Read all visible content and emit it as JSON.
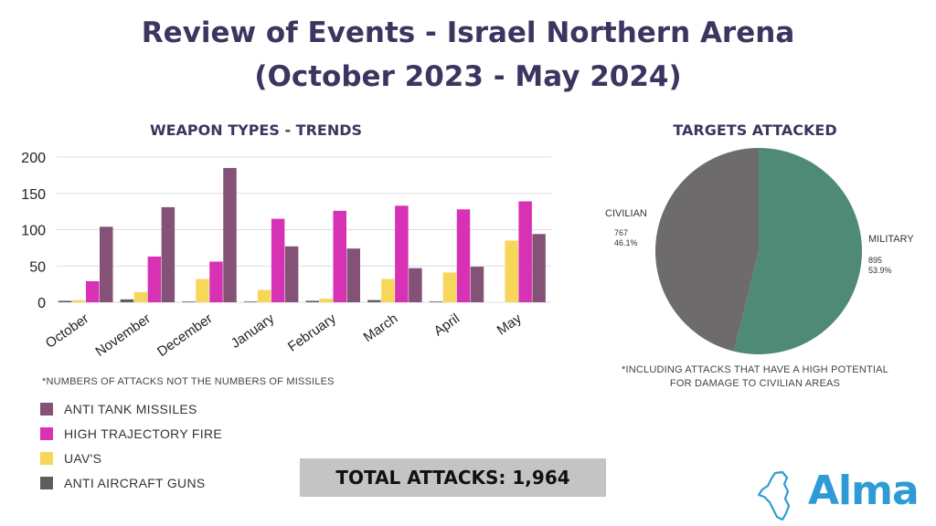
{
  "header": {
    "title_line1": "Review of Events - Israel Northern Arena",
    "title_line2": "(October 2023 - May 2024)"
  },
  "bar_section": {
    "title": "WEAPON TYPES - TRENDS",
    "note": "*NUMBERS OF ATTACKS NOT THE NUMBERS OF MISSILES"
  },
  "pie_section": {
    "title": "TARGETS ATTACKED",
    "note_line1": "*INCLUDING ATTACKS THAT HAVE A HIGH POTENTIAL",
    "note_line2": "FOR DAMAGE TO CIVILIAN AREAS"
  },
  "legend": {
    "items": [
      {
        "label": "ANTI TANK MISSILES",
        "color": "#845277"
      },
      {
        "label": "HIGH TRAJECTORY FIRE",
        "color": "#d732b4"
      },
      {
        "label": "UAV'S",
        "color": "#f6d75a"
      },
      {
        "label": "ANTI AIRCRAFT GUNS",
        "color": "#5e5e5e"
      }
    ]
  },
  "total": {
    "label": "TOTAL ATTACKS: 1,964"
  },
  "logo": {
    "text": "Alma",
    "color": "#2e9bd6"
  },
  "chart_data": [
    {
      "type": "bar",
      "title": "WEAPON TYPES - TRENDS",
      "categories": [
        "October",
        "November",
        "December",
        "January",
        "February",
        "March",
        "April",
        "May"
      ],
      "yticks": [
        "0",
        "50",
        "100",
        "150",
        "200"
      ],
      "ylim": [
        0,
        200
      ],
      "series": [
        {
          "name": "ANTI AIRCRAFT GUNS",
          "color": "#5e5e5e",
          "values": [
            2,
            4,
            1,
            1,
            2,
            3,
            1,
            0
          ]
        },
        {
          "name": "UAV'S",
          "color": "#f6d75a",
          "values": [
            3,
            14,
            32,
            17,
            5,
            32,
            41,
            85
          ]
        },
        {
          "name": "HIGH TRAJECTORY FIRE",
          "color": "#d732b4",
          "values": [
            29,
            63,
            56,
            115,
            126,
            133,
            128,
            139
          ]
        },
        {
          "name": "ANTI TANK MISSILES",
          "color": "#845277",
          "values": [
            104,
            131,
            185,
            77,
            74,
            47,
            49,
            94
          ]
        }
      ],
      "grid": true
    },
    {
      "type": "pie",
      "title": "TARGETS ATTACKED",
      "slices": [
        {
          "label": "MILITARY",
          "value": 895,
          "value_label": "895",
          "percent_label": "53.9%",
          "color": "#4f8a76"
        },
        {
          "label": "CIVILIAN",
          "value": 767,
          "value_label": "767",
          "percent_label": "46.1%",
          "color": "#6e6b6c"
        }
      ]
    }
  ]
}
